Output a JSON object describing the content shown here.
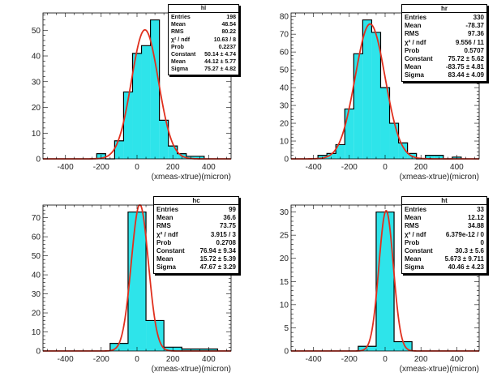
{
  "colors": {
    "fill": "#2ee4ea",
    "outline": "#000000",
    "fit": "#e0301e"
  },
  "chart_data": [
    {
      "type": "bar",
      "name": "hl",
      "xlabel": "(xmeas-xtrue)(micron)",
      "ylabel": "",
      "xlim": [
        -525,
        525
      ],
      "ylim": [
        0,
        56.7
      ],
      "xticks": [
        "-400",
        "-200",
        "0",
        "200",
        "400"
      ],
      "yticks": [
        "0",
        "10",
        "20",
        "30",
        "40",
        "50"
      ],
      "bin_edges": [
        -225,
        -175,
        -125,
        -75,
        -25,
        25,
        75,
        125,
        175,
        225,
        275,
        325,
        375
      ],
      "values": [
        2,
        0,
        7,
        26,
        41,
        44,
        54,
        15,
        5,
        2,
        1,
        1
      ],
      "fit": {
        "constant": 50.14,
        "mean": 44.12,
        "sigma": 75.27
      },
      "stats": [
        [
          "Entries",
          "198"
        ],
        [
          "Mean",
          "48.54"
        ],
        [
          "RMS",
          "80.22"
        ],
        [
          "χ² / ndf",
          "10.63 / 8"
        ],
        [
          "Prob",
          "0.2237"
        ],
        [
          "Constant",
          "50.14 ± 4.74"
        ],
        [
          "Mean",
          "44.12 ± 5.77"
        ],
        [
          "Sigma",
          "75.27 ± 4.82"
        ]
      ]
    },
    {
      "type": "bar",
      "name": "hr",
      "xlabel": "(xmeas-xtrue)(micron)",
      "ylabel": "",
      "xlim": [
        -525,
        525
      ],
      "ylim": [
        0,
        81.9
      ],
      "xticks": [
        "-400",
        "-200",
        "0",
        "200",
        "400"
      ],
      "yticks": [
        "0",
        "10",
        "20",
        "30",
        "40",
        "50",
        "60",
        "70",
        "80"
      ],
      "bin_edges": [
        -375,
        -325,
        -275,
        -225,
        -175,
        -125,
        -75,
        -25,
        25,
        75,
        125,
        175,
        225,
        275,
        325,
        375,
        425
      ],
      "values": [
        2,
        3,
        8,
        28,
        59,
        78,
        71,
        40,
        20,
        9,
        3,
        0,
        2,
        2,
        0,
        1
      ],
      "fit": {
        "constant": 75.72,
        "mean": -83.75,
        "sigma": 83.44
      },
      "stats": [
        [
          "Entries",
          "330"
        ],
        [
          "Mean",
          "-78.37"
        ],
        [
          "RMS",
          "97.36"
        ],
        [
          "χ² / ndf",
          "9.556 / 11"
        ],
        [
          "Prob",
          "0.5707"
        ],
        [
          "Constant",
          "75.72 ± 5.62"
        ],
        [
          "Mean",
          "-83.75 ± 4.81"
        ],
        [
          "Sigma",
          "83.44 ± 4.09"
        ]
      ]
    },
    {
      "type": "bar",
      "name": "hc",
      "xlabel": "(xmeas-xtrue)(micron)",
      "ylabel": "",
      "xlim": [
        -525,
        525
      ],
      "ylim": [
        0,
        76.65
      ],
      "xticks": [
        "-400",
        "-200",
        "0",
        "200",
        "400"
      ],
      "yticks": [
        "0",
        "10",
        "20",
        "30",
        "40",
        "50",
        "60",
        "70"
      ],
      "bin_edges": [
        -150,
        -50,
        50,
        150,
        250,
        350,
        450
      ],
      "values": [
        4,
        73,
        16,
        2,
        1,
        1
      ],
      "fit": {
        "constant": 76.94,
        "mean": 15.72,
        "sigma": 47.67
      },
      "stats": [
        [
          "Entries",
          "99"
        ],
        [
          "Mean",
          "36.6"
        ],
        [
          "RMS",
          "73.75"
        ],
        [
          "χ² / ndf",
          "3.915 / 3"
        ],
        [
          "Prob",
          "0.2708"
        ],
        [
          "Constant",
          "76.94 ± 9.34"
        ],
        [
          "Mean",
          "15.72 ± 5.39"
        ],
        [
          "Sigma",
          "47.67 ± 3.29"
        ]
      ]
    },
    {
      "type": "bar",
      "name": "ht",
      "xlabel": "(xmeas-xtrue)(micron)",
      "ylabel": "",
      "xlim": [
        -525,
        525
      ],
      "ylim": [
        0,
        31.5
      ],
      "xticks": [
        "-400",
        "-200",
        "0",
        "200",
        "400"
      ],
      "yticks": [
        "0",
        "5",
        "10",
        "15",
        "20",
        "25",
        "30"
      ],
      "bin_edges": [
        -150,
        -50,
        50,
        150
      ],
      "values": [
        1,
        30,
        2
      ],
      "fit": {
        "constant": 30.3,
        "mean": 5.673,
        "sigma": 40.46
      },
      "stats": [
        [
          "Entries",
          "33"
        ],
        [
          "Mean",
          "12.12"
        ],
        [
          "RMS",
          "34.88"
        ],
        [
          "χ² / ndf",
          "6.379e-12 / 0"
        ],
        [
          "Prob",
          "0"
        ],
        [
          "Constant",
          "30.3 ± 5.6"
        ],
        [
          "Mean",
          "5.673 ± 9.711"
        ],
        [
          "Sigma",
          "40.46 ± 4.23"
        ]
      ]
    }
  ]
}
